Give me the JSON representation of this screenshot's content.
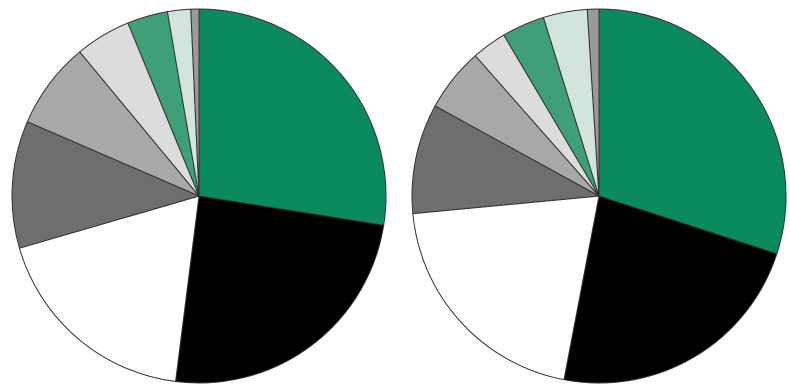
{
  "chart_data": [
    {
      "type": "pie",
      "start_angle_deg": 0,
      "direction": "clockwise",
      "slices": [
        {
          "value": 27.5,
          "color": "#0b8a5f"
        },
        {
          "value": 24.5,
          "color": "#000000"
        },
        {
          "value": 18.5,
          "color": "#ffffff"
        },
        {
          "value": 11.0,
          "color": "#6e6e6e"
        },
        {
          "value": 7.5,
          "color": "#a8a8a8"
        },
        {
          "value": 4.8,
          "color": "#dcdcdc"
        },
        {
          "value": 3.5,
          "color": "#3f9f78"
        },
        {
          "value": 2.0,
          "color": "#d2e4dc"
        },
        {
          "value": 0.7,
          "color": "#9a9a9a"
        }
      ]
    },
    {
      "type": "pie",
      "start_angle_deg": 0,
      "direction": "clockwise",
      "slices": [
        {
          "value": 30.0,
          "color": "#0b8a5f"
        },
        {
          "value": 23.0,
          "color": "#000000"
        },
        {
          "value": 20.5,
          "color": "#ffffff"
        },
        {
          "value": 9.5,
          "color": "#6e6e6e"
        },
        {
          "value": 5.5,
          "color": "#a8a8a8"
        },
        {
          "value": 3.0,
          "color": "#dcdcdc"
        },
        {
          "value": 3.7,
          "color": "#3f9f78"
        },
        {
          "value": 3.8,
          "color": "#d2e4dc"
        },
        {
          "value": 1.0,
          "color": "#9a9a9a"
        }
      ]
    }
  ]
}
